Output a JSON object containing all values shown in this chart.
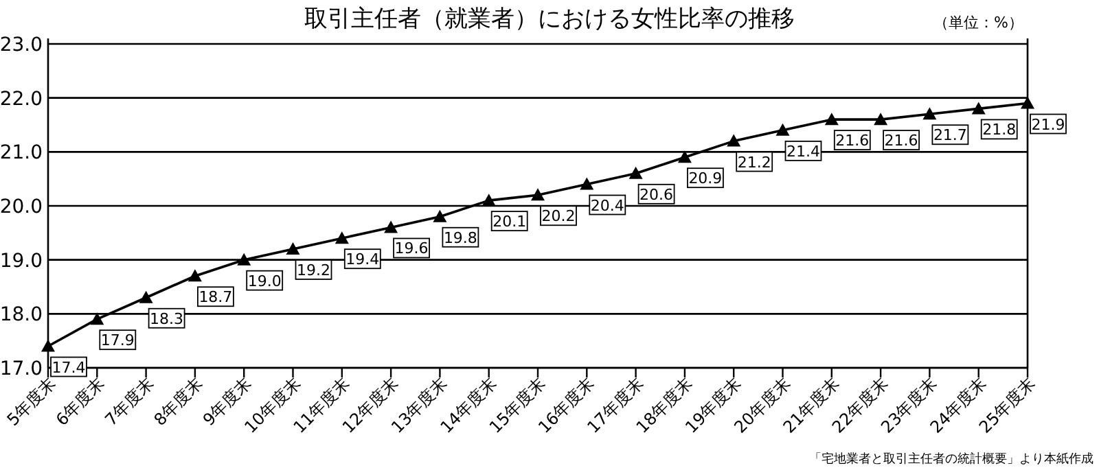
{
  "chart_data": {
    "type": "line",
    "title": "取引主任者（就業者）における女性比率の推移",
    "annotations": [
      "（単位：%）",
      "「宅地業者と取引主任者の統計概要」より本紙作成"
    ],
    "categories": [
      "5年度末",
      "6年度末",
      "7年度末",
      "8年度末",
      "9年度末",
      "10年度末",
      "11年度末",
      "12年度末",
      "13年度末",
      "14年度末",
      "15年度末",
      "16年度末",
      "17年度末",
      "18年度末",
      "19年度末",
      "20年度末",
      "21年度末",
      "22年度末",
      "23年度末",
      "24年度末",
      "25年度末"
    ],
    "values": [
      17.4,
      17.9,
      18.3,
      18.7,
      19.0,
      19.2,
      19.4,
      19.6,
      19.8,
      20.1,
      20.2,
      20.4,
      20.6,
      20.9,
      21.2,
      21.4,
      21.6,
      21.6,
      21.7,
      21.8,
      21.9
    ],
    "value_labels": [
      "17.4",
      "17.9",
      "18.3",
      "18.7",
      "19.0",
      "19.2",
      "19.4",
      "19.6",
      "19.8",
      "20.1",
      "20.2",
      "20.4",
      "20.6",
      "20.9",
      "21.2",
      "21.4",
      "21.6",
      "21.6",
      "21.7",
      "21.8",
      "21.9"
    ],
    "color": "#000000",
    "marker": "triangle",
    "grid": "y",
    "ylim": [
      17,
      23
    ],
    "yticks": [
      {
        "value": 17,
        "label": "17.0"
      },
      {
        "value": 18,
        "label": "18.0"
      },
      {
        "value": 19,
        "label": "19.0"
      },
      {
        "value": 20,
        "label": "20.0"
      },
      {
        "value": 21,
        "label": "21.0"
      },
      {
        "value": 22,
        "label": "22.0"
      },
      {
        "value": 23,
        "label": "23.0"
      }
    ]
  }
}
